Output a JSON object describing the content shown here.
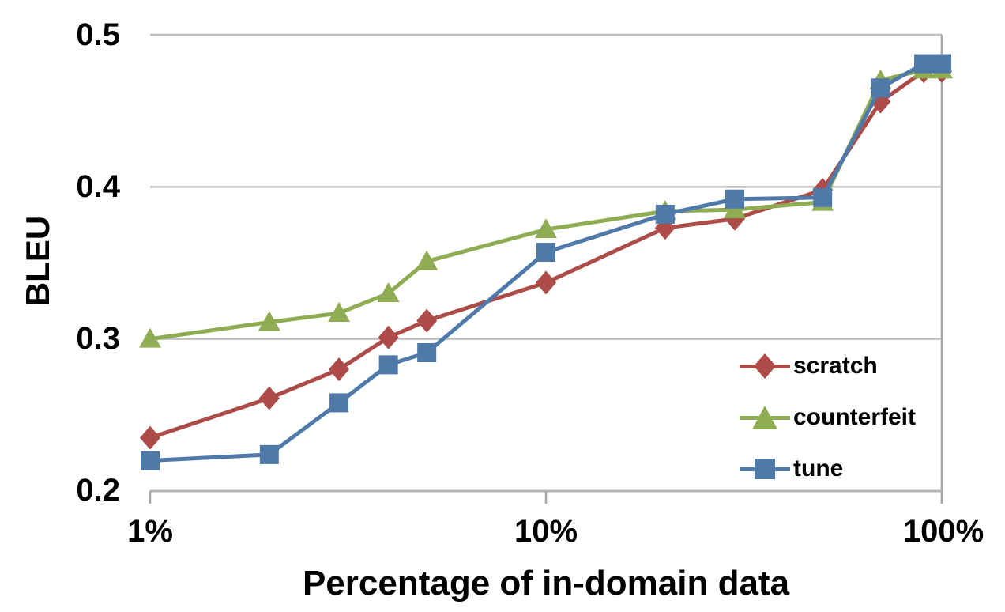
{
  "chart_data": {
    "type": "line",
    "title": "",
    "xlabel": "Percentage of in-domain data",
    "ylabel": "BLEU",
    "grid": "horizontal",
    "x_axis": {
      "scale": "log",
      "ticks": [
        "1%",
        "10%",
        "100%"
      ],
      "tick_values": [
        1,
        10,
        100
      ],
      "range_percent": [
        1,
        100
      ]
    },
    "y_axis": {
      "ticks": [
        "0.5",
        "0.4",
        "0.3",
        "0.2"
      ],
      "tick_values": [
        0.5,
        0.4,
        0.3,
        0.2
      ],
      "range": [
        0.2,
        0.5
      ]
    },
    "legend": {
      "position": "inside-right",
      "entries": [
        "scratch",
        "counterfeit",
        "tune"
      ]
    },
    "x_percent": [
      1,
      2,
      3,
      4,
      5,
      10,
      20,
      30,
      50,
      70,
      90,
      100
    ],
    "series": [
      {
        "name": "scratch",
        "marker": "diamond",
        "color": "#AC4B47",
        "values": [
          0.235,
          0.261,
          0.28,
          0.301,
          0.312,
          0.337,
          0.373,
          0.379,
          0.398,
          0.456,
          0.476,
          0.476
        ]
      },
      {
        "name": "counterfeit",
        "marker": "triangle",
        "color": "#8EAC51",
        "values": [
          0.3,
          0.311,
          0.317,
          0.33,
          0.351,
          0.372,
          0.384,
          0.385,
          0.39,
          0.47,
          0.477,
          0.477
        ]
      },
      {
        "name": "tune",
        "marker": "square",
        "color": "#4E79A9",
        "values": [
          0.22,
          0.224,
          0.258,
          0.283,
          0.291,
          0.357,
          0.382,
          0.392,
          0.393,
          0.465,
          0.481,
          0.481
        ]
      }
    ]
  },
  "colors": {
    "gridline": "#BFBFBF",
    "axis_line": "#B3B3B3",
    "tick_mark": "#A6A6A6",
    "text": "#000000",
    "background": "#FFFFFF"
  }
}
